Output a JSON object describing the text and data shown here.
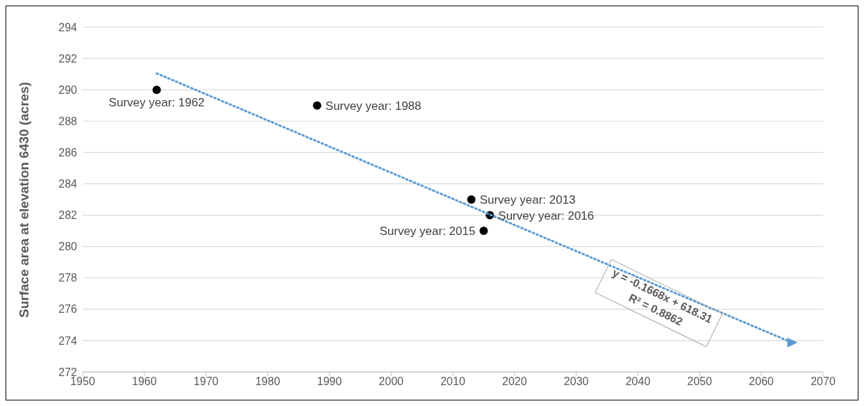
{
  "chart_data": {
    "type": "scatter",
    "ylabel": "Surface area at elevation 6430 (acres)",
    "xlim": [
      1950,
      2070
    ],
    "xticks": [
      1950,
      1960,
      1970,
      1980,
      1990,
      2000,
      2010,
      2020,
      2030,
      2040,
      2050,
      2060,
      2070
    ],
    "ylim": [
      272,
      294
    ],
    "yticks": [
      272,
      274,
      276,
      278,
      280,
      282,
      284,
      286,
      288,
      290,
      292,
      294
    ],
    "grid": "y",
    "marker": "circle",
    "series": [
      {
        "color": "#000000",
        "x": [
          1962,
          1988,
          2013,
          2015,
          2016
        ],
        "values": [
          290,
          289,
          283,
          281,
          282
        ]
      },
      {
        "type": "line",
        "color": "#5b9bd5",
        "line_style": "dotted",
        "marker": "triangle",
        "x": [
          1962,
          2065
        ],
        "values": [
          291.05,
          273.87
        ]
      }
    ],
    "annotations": [
      {
        "text": "Survey year: 1962",
        "x": 1962,
        "y": 290
      },
      {
        "text": "Survey year: 1988",
        "x": 1988,
        "y": 289
      },
      {
        "text": "Survey year: 2013",
        "x": 2013,
        "y": 283
      },
      {
        "text": "Survey year: 2015",
        "x": 2015,
        "y": 281
      },
      {
        "text": "Survey year: 2016",
        "x": 2016,
        "y": 282
      },
      "y = -0.1668x + 618.31",
      "R² = 0.8862"
    ]
  }
}
